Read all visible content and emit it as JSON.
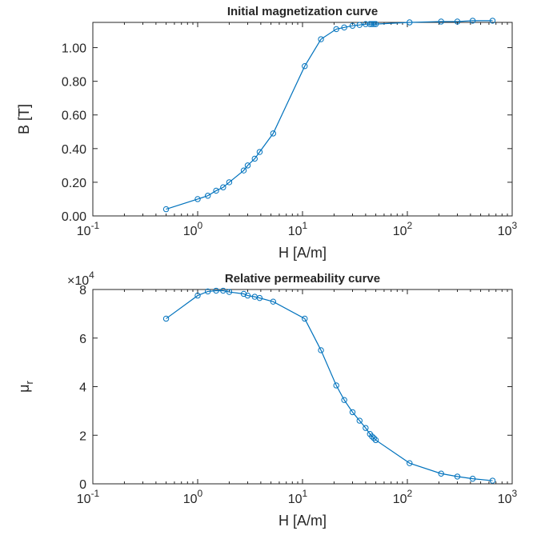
{
  "chart_data": [
    {
      "type": "line",
      "title": "Initial magnetization curve",
      "xlabel": "H [A/m]",
      "ylabel": "B [T]",
      "xscale": "log",
      "xlim": [
        0.1,
        1000
      ],
      "ylim": [
        0,
        1.15
      ],
      "xticks": [
        0.1,
        1,
        10,
        100,
        1000
      ],
      "xtick_labels": [
        {
          "base": "10",
          "exp": "-1"
        },
        {
          "base": "10",
          "exp": "0"
        },
        {
          "base": "10",
          "exp": "1"
        },
        {
          "base": "10",
          "exp": "2"
        },
        {
          "base": "10",
          "exp": "3"
        }
      ],
      "yticks": [
        0,
        0.2,
        0.4,
        0.6,
        0.8,
        1.0
      ],
      "ytick_labels": [
        "0.00",
        "0.20",
        "0.40",
        "0.60",
        "0.80",
        "1.00"
      ],
      "grid": false,
      "color": "#0072BD",
      "marker": "circle",
      "series": [
        {
          "x": [
            0.5,
            1.0,
            1.25,
            1.5,
            1.75,
            2.0,
            2.75,
            3.0,
            3.5,
            3.9,
            5.25,
            10.5,
            15.0,
            21.0,
            25.0,
            30.0,
            35.0,
            40.0,
            44.0,
            46.0,
            48.0,
            50.0,
            105.0,
            210.0,
            300.0,
            420.0,
            650.0
          ],
          "y": [
            0.04,
            0.1,
            0.12,
            0.15,
            0.17,
            0.2,
            0.27,
            0.3,
            0.34,
            0.38,
            0.49,
            0.89,
            1.05,
            1.11,
            1.12,
            1.13,
            1.135,
            1.14,
            1.14,
            1.14,
            1.14,
            1.14,
            1.15,
            1.155,
            1.155,
            1.16,
            1.16
          ]
        }
      ]
    },
    {
      "type": "line",
      "title": "Relative permeability curve",
      "xlabel": "H [A/m]",
      "ylabel": {
        "base": "μ",
        "sub": "r"
      },
      "xscale": "log",
      "xlim": [
        0.1,
        1000
      ],
      "ylim": [
        0,
        80000
      ],
      "exponent_label": {
        "prefix": "×10",
        "exp": "4"
      },
      "xticks": [
        0.1,
        1,
        10,
        100,
        1000
      ],
      "xtick_labels": [
        {
          "base": "10",
          "exp": "-1"
        },
        {
          "base": "10",
          "exp": "0"
        },
        {
          "base": "10",
          "exp": "1"
        },
        {
          "base": "10",
          "exp": "2"
        },
        {
          "base": "10",
          "exp": "3"
        }
      ],
      "yticks": [
        0,
        20000,
        40000,
        60000,
        80000
      ],
      "ytick_labels": [
        "0",
        "2",
        "4",
        "6",
        "8"
      ],
      "grid": false,
      "color": "#0072BD",
      "marker": "circle",
      "series": [
        {
          "x": [
            0.5,
            1.0,
            1.25,
            1.5,
            1.75,
            2.0,
            2.75,
            3.0,
            3.5,
            3.9,
            5.25,
            10.5,
            15.0,
            21.0,
            25.0,
            30.0,
            35.0,
            40.0,
            44.0,
            46.0,
            48.0,
            50.0,
            105.0,
            210.0,
            300.0,
            420.0,
            650.0
          ],
          "y": [
            68000,
            77500,
            79200,
            79500,
            79500,
            79000,
            78200,
            77500,
            77000,
            76500,
            75000,
            68000,
            55000,
            40500,
            34500,
            29500,
            26000,
            23000,
            20500,
            19500,
            18800,
            18000,
            8500,
            4200,
            3000,
            2100,
            1300
          ]
        }
      ]
    }
  ]
}
